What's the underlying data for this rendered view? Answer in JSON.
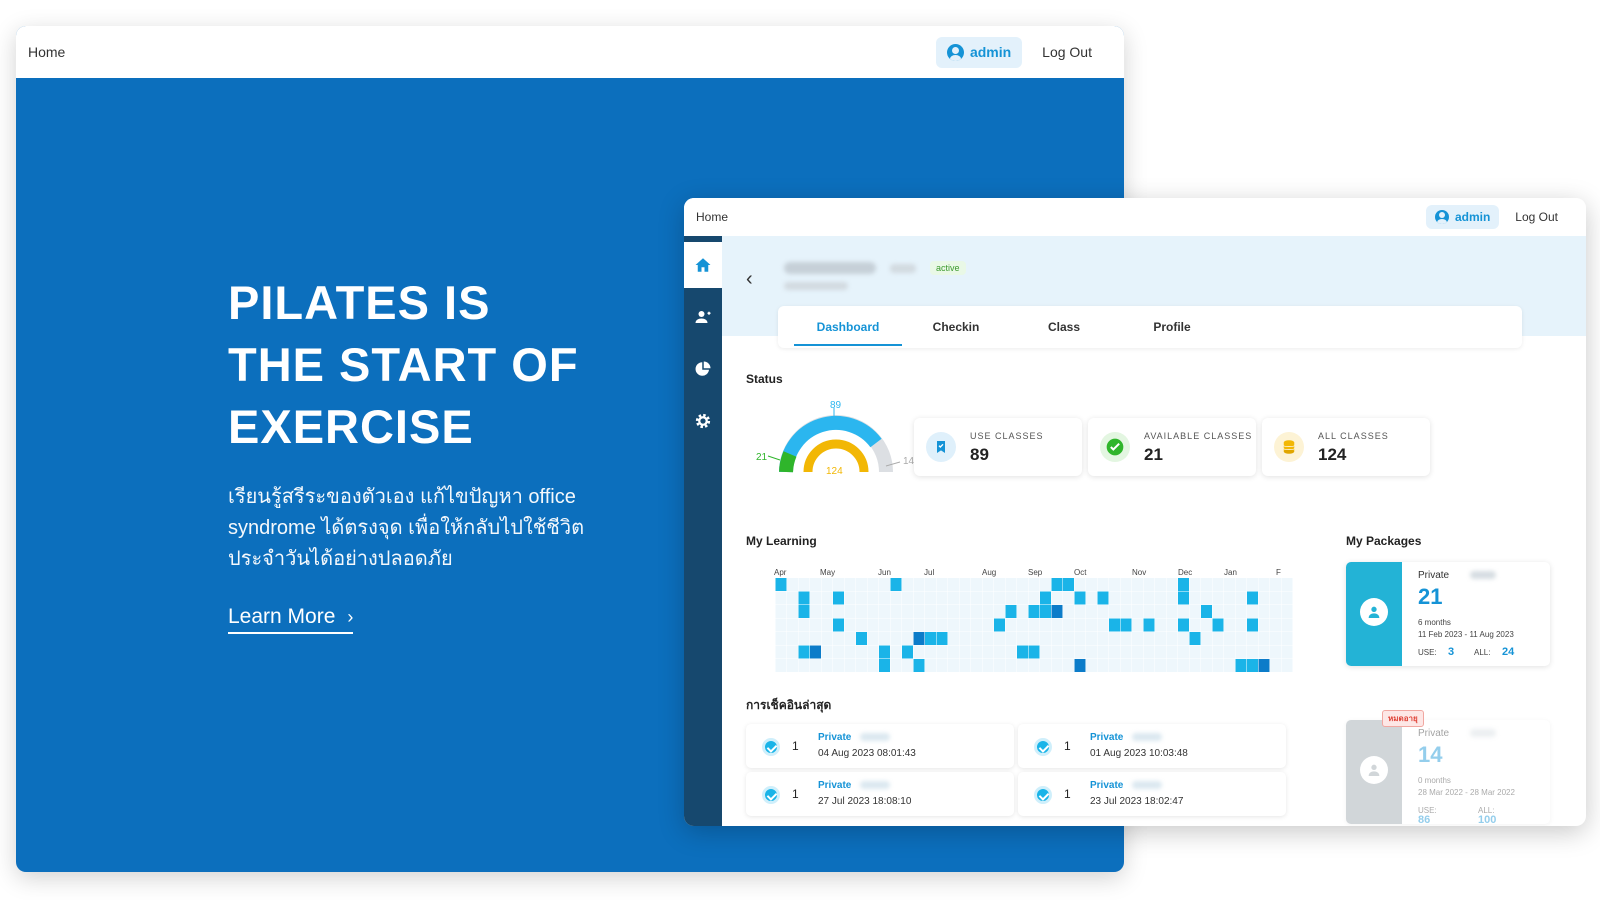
{
  "landing": {
    "nav": {
      "home": "Home",
      "admin": "admin",
      "logout": "Log Out"
    },
    "hero_title": "PILATES IS\nTHE START OF\nEXERCISE",
    "hero_text": "เรียนรู้สรีระของตัวเอง แก้ไขปัญหา office syndrome ได้ตรงจุด เพื่อให้กลับไปใช้ชีวิตประจำวันได้อย่างปลอดภัย",
    "learn_more": "Learn More",
    "bg_color": "#0c6fbd"
  },
  "dashboard": {
    "nav": {
      "home": "Home",
      "admin": "admin",
      "logout": "Log Out"
    },
    "sidebar": [
      {
        "icon": "home-icon",
        "active": true
      },
      {
        "icon": "add-user-icon",
        "active": false
      },
      {
        "icon": "pie-chart-icon",
        "active": false
      },
      {
        "icon": "gear-icon",
        "active": false
      }
    ],
    "member_status": "active",
    "tabs": [
      "Dashboard",
      "Checkin",
      "Class",
      "Profile"
    ],
    "status_title": "Status",
    "gauge": {
      "used": 89,
      "available": 21,
      "all": 124,
      "other": 14
    },
    "stats": [
      {
        "label": "USE CLASSES",
        "value": "89",
        "icon": "bookmark-icon",
        "color": "#1593d6"
      },
      {
        "label": "AVAILABLE CLASSES",
        "value": "21",
        "icon": "check-circle-icon",
        "color": "#2fb52b"
      },
      {
        "label": "ALL CLASSES",
        "value": "124",
        "icon": "coins-icon",
        "color": "#f2b705"
      }
    ],
    "learning_title": "My Learning",
    "months": [
      "Apr",
      "May",
      "Jun",
      "Jul",
      "Aug",
      "Sep",
      "Oct",
      "Nov",
      "Dec",
      "Jan",
      "F"
    ],
    "checkin_title": "การเช็คอินล่าสุด",
    "checkins": [
      {
        "count": "1",
        "type": "Private",
        "date": "04 Aug 2023 08:01:43"
      },
      {
        "count": "1",
        "type": "Private",
        "date": "01 Aug 2023 10:03:48"
      },
      {
        "count": "1",
        "type": "Private",
        "date": "27 Jul 2023 18:08:10"
      },
      {
        "count": "1",
        "type": "Private",
        "date": "23 Jul 2023 18:02:47"
      }
    ],
    "packages_title": "My Packages",
    "packages": [
      {
        "type": "Private",
        "remaining": "21",
        "duration": "6 months",
        "range": "11 Feb 2023 - 11 Aug 2023",
        "use_label": "USE:",
        "use": "3",
        "all_label": "ALL:",
        "all": "24"
      },
      {
        "type": "Private",
        "remaining": "14",
        "duration": "0 months",
        "range": "28 Mar 2022 - 28 Mar 2022",
        "use_label": "USE:",
        "use": "86",
        "all_label": "ALL:",
        "all": "100",
        "tag": "หมดอายุ"
      }
    ]
  }
}
